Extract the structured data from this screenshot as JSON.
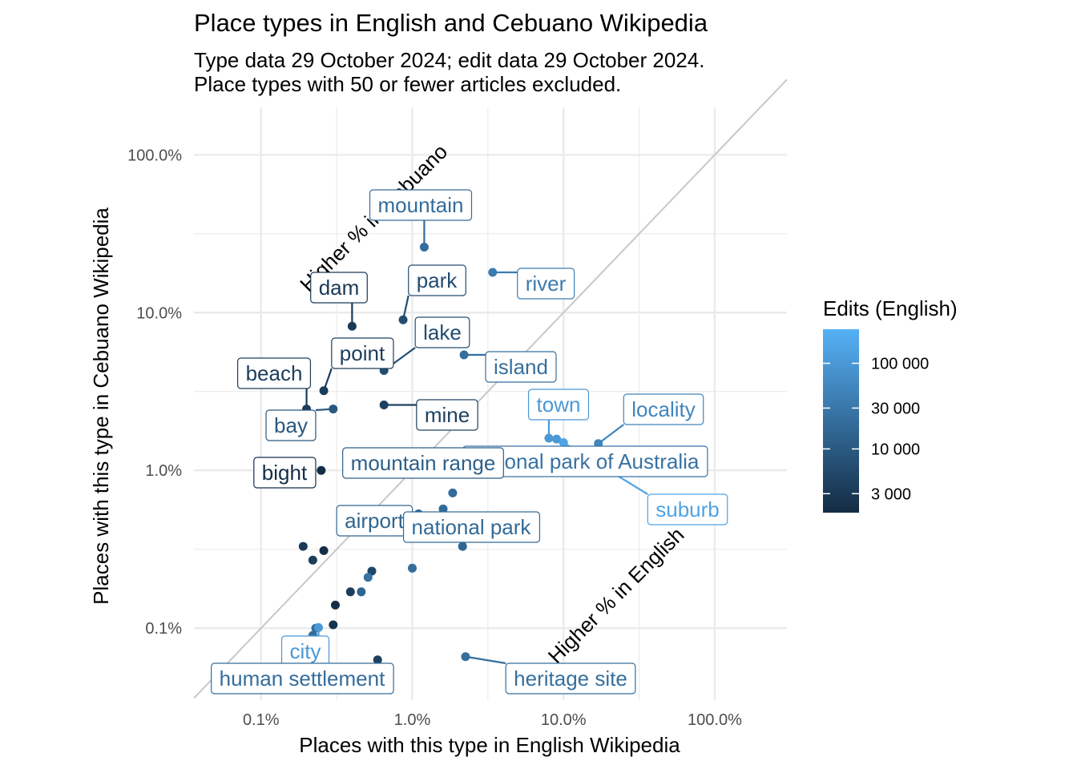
{
  "chart_data": {
    "type": "scatter",
    "title": "Place types in English and Cebuano Wikipedia",
    "subtitle": [
      "Type data 29 October 2024; edit data 29 October 2024.",
      "Place types with 50 or fewer articles excluded."
    ],
    "xlabel": "Places with this type in English Wikipedia",
    "ylabel": "Places with this type in Cebuano Wikipedia",
    "x_scale": "log10",
    "y_scale": "log10",
    "xlim": [
      0.036,
      300
    ],
    "ylim": [
      0.035,
      200
    ],
    "x_ticks": [
      0.1,
      1,
      10,
      100
    ],
    "x_tick_labels": [
      "0.1%",
      "1.0%",
      "10.0%",
      "100.0%"
    ],
    "y_ticks": [
      0.1,
      1,
      10,
      100
    ],
    "y_tick_labels": [
      "0.1%",
      "1.0%",
      "10.0%",
      "100.0%"
    ],
    "grid": true,
    "diagonal_reference_line": true,
    "annotations": [
      "Higher % in Cebuano",
      "Higher % in English"
    ],
    "legend": {
      "title": "Edits (English)",
      "placement": "right",
      "scale": "log10",
      "range": [
        1800,
        250000
      ],
      "ticks": [
        3000,
        10000,
        30000,
        100000
      ],
      "tick_labels": [
        "3 000",
        "10 000",
        "30 000",
        "100 000"
      ],
      "color_low": "#132B43",
      "color_high": "#56B1F7"
    },
    "points": [
      {
        "label": "mountain",
        "x": 1.2,
        "y": 26,
        "edits": 20000
      },
      {
        "label": "river",
        "x": 3.4,
        "y": 18,
        "edits": 35000
      },
      {
        "label": "dam",
        "x": 0.4,
        "y": 8.2,
        "edits": 3000
      },
      {
        "label": "park",
        "x": 0.87,
        "y": 9.0,
        "edits": 6000
      },
      {
        "label": "lake",
        "x": 0.65,
        "y": 4.3,
        "edits": 6000
      },
      {
        "label": "island",
        "x": 2.2,
        "y": 5.4,
        "edits": 22000
      },
      {
        "label": "point",
        "x": 0.26,
        "y": 3.2,
        "edits": 3500
      },
      {
        "label": "beach",
        "x": 0.2,
        "y": 2.45,
        "edits": 3500
      },
      {
        "label": "bay",
        "x": 0.3,
        "y": 2.45,
        "edits": 9000
      },
      {
        "label": "mine",
        "x": 0.65,
        "y": 2.6,
        "edits": 4000
      },
      {
        "label": "town",
        "x": 8.0,
        "y": 1.6,
        "edits": 100000
      },
      {
        "label": "",
        "x": 9.0,
        "y": 1.58,
        "edits": 100000
      },
      {
        "label": "locality",
        "x": 17,
        "y": 1.48,
        "edits": 50000
      },
      {
        "label": "national park of Australia",
        "x": 3.0,
        "y": 1.0,
        "edits": 25000
      },
      {
        "label": "mountain range",
        "x": 0.68,
        "y": 1.0,
        "edits": 12000
      },
      {
        "label": "bight",
        "x": 0.25,
        "y": 1.0,
        "edits": 2000
      },
      {
        "label": "suburb",
        "x": 10,
        "y": 1.5,
        "edits": 150000
      },
      {
        "label": "",
        "x": 1.85,
        "y": 0.72,
        "edits": 20000
      },
      {
        "label": "airport",
        "x": 1.1,
        "y": 0.53,
        "edits": 15000
      },
      {
        "label": "national park",
        "x": 1.6,
        "y": 0.57,
        "edits": 18000
      },
      {
        "label": "",
        "x": 2.15,
        "y": 0.33,
        "edits": 15000
      },
      {
        "label": "",
        "x": 0.19,
        "y": 0.33,
        "edits": 3000
      },
      {
        "label": "",
        "x": 0.22,
        "y": 0.27,
        "edits": 3500
      },
      {
        "label": "",
        "x": 0.26,
        "y": 0.31,
        "edits": 2000
      },
      {
        "label": "",
        "x": 1.0,
        "y": 0.24,
        "edits": 20000
      },
      {
        "label": "",
        "x": 0.54,
        "y": 0.23,
        "edits": 5000
      },
      {
        "label": "",
        "x": 0.51,
        "y": 0.21,
        "edits": 25000
      },
      {
        "label": "",
        "x": 0.39,
        "y": 0.17,
        "edits": 3500
      },
      {
        "label": "",
        "x": 0.46,
        "y": 0.17,
        "edits": 15000
      },
      {
        "label": "",
        "x": 0.31,
        "y": 0.14,
        "edits": 2000
      },
      {
        "label": "",
        "x": 0.3,
        "y": 0.105,
        "edits": 2500
      },
      {
        "label": "",
        "x": 0.23,
        "y": 0.1,
        "edits": 20000
      },
      {
        "label": "city",
        "x": 0.24,
        "y": 0.101,
        "edits": 100000
      },
      {
        "label": "",
        "x": 0.22,
        "y": 0.09,
        "edits": 30000
      },
      {
        "label": "human settlement",
        "x": 0.22,
        "y": 0.09,
        "edits": 20000
      },
      {
        "label": "",
        "x": 0.59,
        "y": 0.063,
        "edits": 4000
      },
      {
        "label": "heritage site",
        "x": 2.25,
        "y": 0.066,
        "edits": 22000
      }
    ]
  }
}
